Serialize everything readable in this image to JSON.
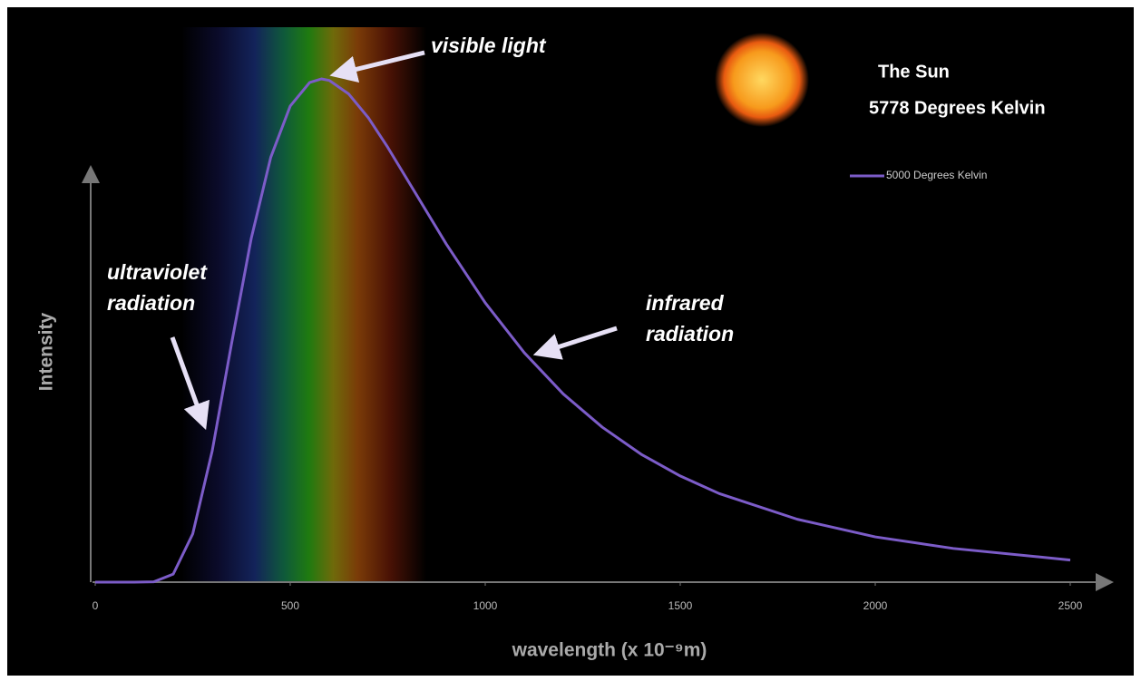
{
  "chart_data": {
    "type": "line",
    "title": "The Sun",
    "subtitle": "5778 Degrees Kelvin",
    "x_label": "wavelength (x 10⁻⁹m)",
    "y_label": "Intensity",
    "annotations": [
      [
        "visible light"
      ],
      [
        "ultraviolet",
        "radiation"
      ],
      [
        "infrared",
        "radiation"
      ]
    ],
    "x": [
      0,
      100,
      150,
      200,
      250,
      300,
      350,
      400,
      450,
      500,
      550,
      580,
      600,
      650,
      700,
      750,
      800,
      900,
      1000,
      1100,
      1200,
      1300,
      1400,
      1500,
      1600,
      1800,
      2000,
      2200,
      2500
    ],
    "series": [
      {
        "name": "5000 Degrees Kelvin",
        "color": "#7c5cc8",
        "values": [
          0,
          0,
          0.06,
          1.6,
          9.6,
          26.1,
          47.6,
          68.3,
          84.4,
          94.6,
          99.3,
          100,
          99.7,
          97.0,
          92.3,
          86.4,
          80.0,
          67.2,
          55.5,
          45.6,
          37.4,
          30.8,
          25.4,
          21.1,
          17.6,
          12.5,
          9.0,
          6.7,
          4.4
        ]
      }
    ],
    "xlim": [
      0,
      2500
    ],
    "ylim": [
      0,
      100
    ],
    "xticks": [
      0,
      500,
      1000,
      1500,
      2000,
      2500
    ],
    "grid": false,
    "legend": "upper right"
  }
}
